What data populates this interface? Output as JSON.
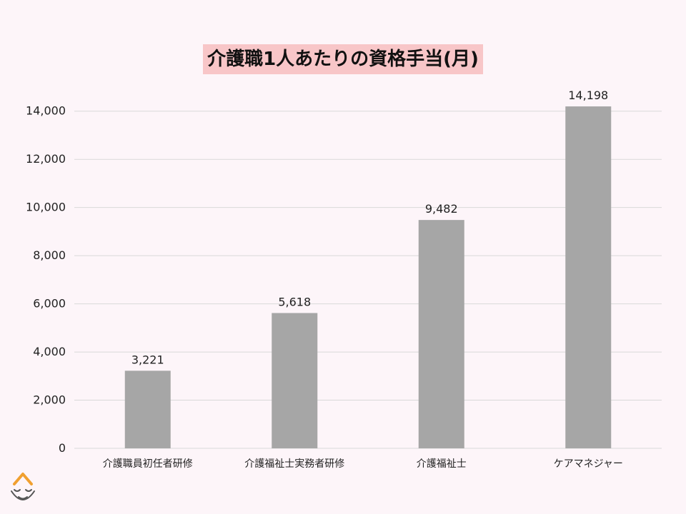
{
  "chart_data": {
    "type": "bar",
    "title": "介護職1人あたりの資格手当(月)",
    "categories": [
      "介護職員初任者研修",
      "介護福祉士実務者研修",
      "介護福祉士",
      "ケアマネジャー"
    ],
    "values": [
      3221,
      5618,
      9482,
      14198
    ],
    "value_labels": [
      "3,221",
      "5,618",
      "9,482",
      "14,198"
    ],
    "y_ticks": [
      0,
      2000,
      4000,
      6000,
      8000,
      10000,
      12000,
      14000
    ],
    "y_tick_labels": [
      "0",
      "2,000",
      "4,000",
      "6,000",
      "8,000",
      "10,000",
      "12,000",
      "14,000"
    ],
    "ylim": [
      0,
      14000
    ],
    "xlabel": "",
    "ylabel": "",
    "grid": true,
    "legend": "none"
  },
  "colors": {
    "bar": "#a6a6a6",
    "background": "#fdf5f9",
    "title_highlight": "#f8c6c8",
    "grid": "#d9d9d9",
    "logo": "#f0a030"
  },
  "logo": {
    "icon": "smiling-face-logo-icon"
  }
}
